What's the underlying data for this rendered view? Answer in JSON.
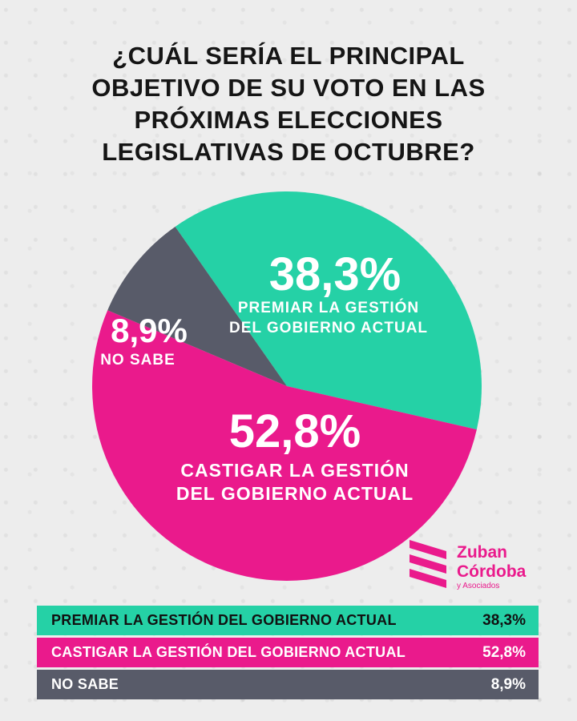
{
  "title": {
    "lines": [
      "¿CUÁL SERÍA EL PRINCIPAL",
      "OBJETIVO DE SU VOTO EN LAS",
      "PRÓXIMAS ELECCIONES",
      "LEGISLATIVAS DE OCTUBRE?"
    ]
  },
  "colors": {
    "premiar": "#25d1a6",
    "castigar": "#ea1a8c",
    "no_sabe": "#585b69"
  },
  "chart_data": {
    "type": "pie",
    "title": "¿CUÁL SERÍA EL PRINCIPAL OBJETIVO DE SU VOTO EN LAS PRÓXIMAS ELECCIONES LEGISLATIVAS DE OCTUBRE?",
    "slices": [
      {
        "pct": "38,3%",
        "value": 38.3,
        "label_lines": [
          "PREMIAR LA GESTIÓN",
          "DEL GOBIERNO ACTUAL"
        ],
        "color": "#25d1a6"
      },
      {
        "pct": "52,8%",
        "value": 52.8,
        "label_lines": [
          "CASTIGAR LA GESTIÓN",
          "DEL GOBIERNO ACTUAL"
        ],
        "color": "#ea1a8c"
      },
      {
        "pct": "8,9%",
        "value": 8.9,
        "label_lines": [
          "NO SABE"
        ],
        "color": "#585b69"
      }
    ]
  },
  "logo": {
    "name_lines": [
      "Zuban",
      "Córdoba"
    ],
    "sub": "y Asociados"
  },
  "table": [
    {
      "label": "PREMIAR LA GESTIÓN DEL GOBIERNO ACTUAL",
      "value": "38,3%",
      "bg": "#25d1a6",
      "fg": "#111111"
    },
    {
      "label": "CASTIGAR  LA GESTIÓN DEL GOBIERNO ACTUAL",
      "value": "52,8%",
      "bg": "#ea1a8c",
      "fg": "#ffffff"
    },
    {
      "label": "NO SABE",
      "value": "8,9%",
      "bg": "#585b69",
      "fg": "#ffffff"
    }
  ]
}
